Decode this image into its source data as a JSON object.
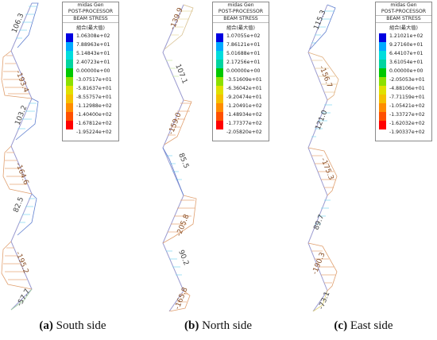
{
  "legend_common": {
    "title": "midas Gen",
    "subtitle": "POST-PROCESSOR",
    "type": "BEAM STRESS",
    "combo": "組合(最大值)"
  },
  "colors": [
    "#0000e0",
    "#00aaff",
    "#00dddd",
    "#00d4a0",
    "#00c800",
    "#8ce000",
    "#e0e000",
    "#f5c000",
    "#ff8c00",
    "#ff5000",
    "#ff0000"
  ],
  "panels": [
    {
      "id": "south",
      "caption_letter": "(a)",
      "caption_text": " South side",
      "legend_values": [
        "1.06308e+02",
        "7.88963e+01",
        "5.14843e+01",
        "2.40723e+01",
        "0.00000e+00",
        "-3.07517e+01",
        "-5.81637e+01",
        "-8.55757e+01",
        "-1.12988e+02",
        "-1.40400e+02",
        "-1.67812e+02",
        "-1.95224e+02"
      ],
      "labels": [
        "106.3",
        "-193.4",
        "103.2",
        "-164.6",
        "82.5",
        "-195.2",
        "-57.7"
      ]
    },
    {
      "id": "north",
      "caption_letter": "(b)",
      "caption_text": " North side",
      "legend_values": [
        "1.07055e+02",
        "7.86121e+01",
        "5.01688e+01",
        "2.17256e+01",
        "0.00000e+00",
        "-3.51609e+01",
        "-6.36042e+01",
        "-9.20474e+01",
        "-1.20491e+02",
        "-1.48934e+02",
        "-1.77377e+02",
        "-2.05820e+02"
      ],
      "labels": [
        "-139.9",
        "107.1",
        "-159.0",
        "85.5",
        "-205.8",
        "90.2",
        "-165.8"
      ]
    },
    {
      "id": "east",
      "caption_letter": "(c)",
      "caption_text": " East side",
      "legend_values": [
        "1.21021e+02",
        "9.27160e+01",
        "6.44107e+01",
        "3.61054e+01",
        "0.00000e+00",
        "-2.05053e+01",
        "-4.88106e+01",
        "-7.71159e+01",
        "-1.05421e+02",
        "-1.33727e+02",
        "-1.62032e+02",
        "-1.90337e+02"
      ],
      "labels": [
        "115.3",
        "-156.7",
        "121.0",
        "-175.3",
        "89.7",
        "-190.3",
        "-73.1"
      ]
    }
  ]
}
